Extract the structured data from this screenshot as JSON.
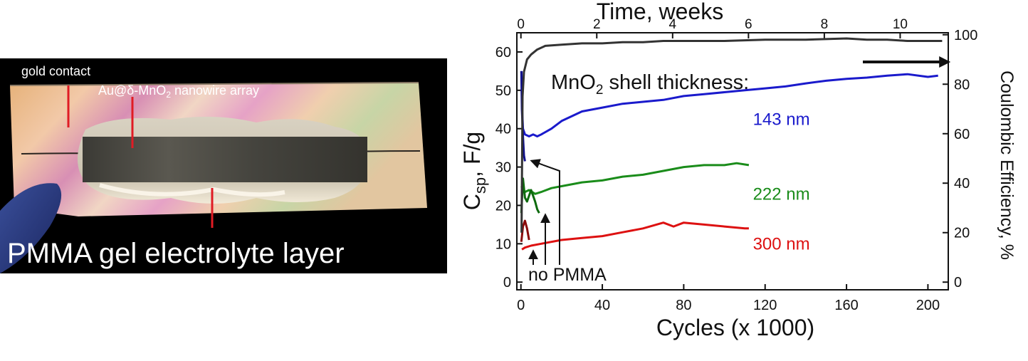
{
  "photo": {
    "labels": {
      "gold_contact": "gold contact",
      "nanowire_prefix": "Au@δ-MnO",
      "nanowire_sub": "2",
      "nanowire_suffix": " nanowire array",
      "electrolyte": "PMMA gel electrolyte layer"
    }
  },
  "chart_data": {
    "type": "line",
    "title": "",
    "top_axis": {
      "label": "Time, weeks",
      "range": [
        0,
        11
      ],
      "ticks": [
        0,
        2,
        4,
        6,
        8,
        10
      ]
    },
    "x_axis": {
      "label": "Cycles (x 1000)",
      "range": [
        -2,
        210
      ],
      "ticks": [
        0,
        40,
        80,
        120,
        160,
        200
      ]
    },
    "y_axis": {
      "label_main": "C",
      "label_sub": "sp",
      "label_rest": ", F/g",
      "range": [
        -2,
        65
      ],
      "ticks": [
        0,
        10,
        20,
        30,
        40,
        50,
        60
      ]
    },
    "y2_axis": {
      "label": "Coulombic Efficiency, %",
      "range": [
        -3.1,
        100.8
      ],
      "ticks": [
        0,
        20,
        40,
        60,
        80,
        100
      ]
    },
    "grid": false,
    "legend": "none",
    "annotations": {
      "shell_prefix": "MnO",
      "shell_sub": "2",
      "shell_suffix": " shell thickness:",
      "no_pmma": "no PMMA"
    },
    "series": [
      {
        "name": "143 nm",
        "axis": "left",
        "color": "#1a1acc",
        "points": [
          [
            0.3,
            55
          ],
          [
            0.6,
            45
          ],
          [
            1,
            40
          ],
          [
            2,
            38.5
          ],
          [
            4,
            38
          ],
          [
            6,
            38.5
          ],
          [
            8,
            38
          ],
          [
            10,
            38.5
          ],
          [
            15,
            40
          ],
          [
            20,
            42
          ],
          [
            30,
            44.5
          ],
          [
            40,
            45.5
          ],
          [
            50,
            46.5
          ],
          [
            60,
            47
          ],
          [
            70,
            47.5
          ],
          [
            80,
            48.5
          ],
          [
            90,
            49
          ],
          [
            100,
            49.5
          ],
          [
            110,
            50
          ],
          [
            120,
            50.5
          ],
          [
            130,
            51
          ],
          [
            140,
            51.8
          ],
          [
            150,
            52.5
          ],
          [
            160,
            53
          ],
          [
            170,
            53.3
          ],
          [
            180,
            53.8
          ],
          [
            190,
            54.2
          ],
          [
            200,
            53.5
          ],
          [
            205,
            53.8
          ]
        ],
        "no_pmma_points": [
          [
            0.2,
            55
          ],
          [
            0.5,
            45
          ],
          [
            1,
            38
          ],
          [
            1.5,
            33
          ],
          [
            2,
            31.5
          ]
        ]
      },
      {
        "name": "222 nm",
        "axis": "left",
        "color": "#1a8c1a",
        "points": [
          [
            0.3,
            25
          ],
          [
            1,
            24
          ],
          [
            2,
            23.5
          ],
          [
            4,
            24
          ],
          [
            7,
            23
          ],
          [
            10,
            23.5
          ],
          [
            15,
            24.5
          ],
          [
            20,
            25
          ],
          [
            30,
            26
          ],
          [
            40,
            26.5
          ],
          [
            50,
            27.5
          ],
          [
            60,
            28
          ],
          [
            70,
            29
          ],
          [
            80,
            30
          ],
          [
            90,
            30.5
          ],
          [
            100,
            30.5
          ],
          [
            106,
            31
          ],
          [
            112,
            30.5
          ]
        ],
        "no_pmma_points": [
          [
            0.2,
            18
          ],
          [
            1,
            27
          ],
          [
            2,
            22
          ],
          [
            3,
            21
          ],
          [
            5,
            24
          ],
          [
            7,
            21
          ],
          [
            8,
            19
          ],
          [
            9,
            18
          ]
        ]
      },
      {
        "name": "300 nm",
        "axis": "left",
        "color": "#dd1111",
        "points": [
          [
            0.5,
            8.5
          ],
          [
            2,
            9
          ],
          [
            5,
            9.5
          ],
          [
            10,
            10
          ],
          [
            20,
            11
          ],
          [
            30,
            11.5
          ],
          [
            40,
            12
          ],
          [
            50,
            13
          ],
          [
            60,
            14
          ],
          [
            70,
            15.5
          ],
          [
            75,
            14.5
          ],
          [
            80,
            15.5
          ],
          [
            90,
            15
          ],
          [
            100,
            14.5
          ],
          [
            110,
            14
          ],
          [
            112,
            14
          ]
        ],
        "no_pmma_points": [
          [
            0.2,
            10.5
          ],
          [
            1,
            14.5
          ],
          [
            2,
            16
          ],
          [
            3,
            14
          ],
          [
            4,
            11
          ]
        ]
      },
      {
        "name": "Coulombic Efficiency",
        "axis": "right",
        "color": "#333333",
        "points": [
          [
            0.3,
            20
          ],
          [
            0.8,
            75
          ],
          [
            1.5,
            85
          ],
          [
            3,
            90
          ],
          [
            5,
            92
          ],
          [
            8,
            94
          ],
          [
            12,
            95.5
          ],
          [
            20,
            96
          ],
          [
            30,
            96.5
          ],
          [
            40,
            96.5
          ],
          [
            50,
            97
          ],
          [
            60,
            97
          ],
          [
            70,
            97.5
          ],
          [
            80,
            97.5
          ],
          [
            100,
            97.5
          ],
          [
            120,
            98
          ],
          [
            140,
            98
          ],
          [
            160,
            98.5
          ],
          [
            170,
            98
          ],
          [
            180,
            98
          ],
          [
            190,
            97.5
          ],
          [
            200,
            97.5
          ],
          [
            207,
            97.5
          ]
        ]
      }
    ],
    "series_labels": [
      {
        "text": "143 nm",
        "x": 114,
        "y": 41,
        "color": "#1a1acc"
      },
      {
        "text": "222 nm",
        "x": 114,
        "y": 21.5,
        "color": "#1a8c1a"
      },
      {
        "text": "300 nm",
        "x": 114,
        "y": 8.5,
        "color": "#dd1111"
      }
    ]
  }
}
